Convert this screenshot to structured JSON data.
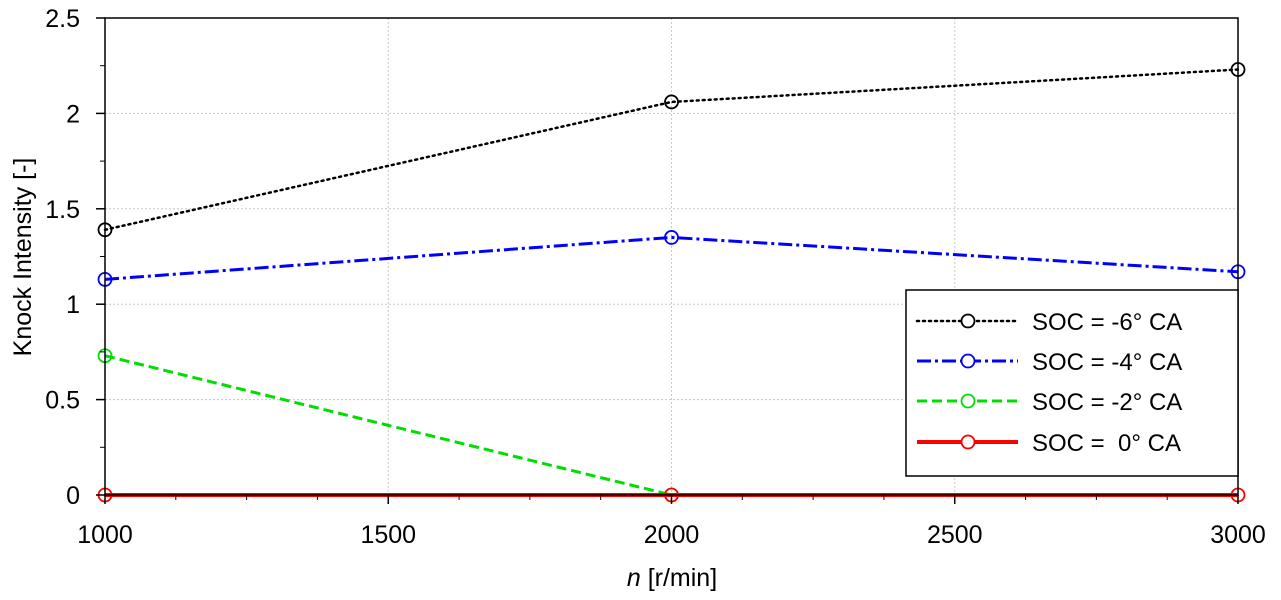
{
  "chart_data": {
    "type": "line",
    "title": "",
    "xlabel_var": "n",
    "xlabel_unit": " [r/min]",
    "ylabel": "Knock Intensity [-]",
    "xlim": [
      1000,
      3000
    ],
    "ylim": [
      0,
      2.5
    ],
    "xticks": [
      1000,
      1500,
      2000,
      2500,
      3000
    ],
    "yticks": [
      0,
      0.5,
      1,
      1.5,
      2,
      2.5
    ],
    "ytick_labels": [
      "0",
      "0.5",
      "1",
      "1.5",
      "2",
      "2.5"
    ],
    "grid": true,
    "legend_position": "lower-right",
    "x": [
      1000,
      2000,
      3000
    ],
    "series": [
      {
        "name": "SOC = -6° CA",
        "values": [
          1.39,
          2.06,
          2.23
        ],
        "color": "#000000",
        "style": "dotted"
      },
      {
        "name": "SOC = -4° CA",
        "values": [
          1.13,
          1.35,
          1.17
        ],
        "color": "#0000ff",
        "style": "dash-dot"
      },
      {
        "name": "SOC = -2° CA",
        "values": [
          0.73,
          0.0,
          null
        ],
        "color": "#00dd00",
        "style": "dashed"
      },
      {
        "name": "SOC =  0° CA",
        "values": [
          0.0,
          0.0,
          0.0
        ],
        "color": "#ff0000",
        "style": "solid"
      }
    ]
  }
}
